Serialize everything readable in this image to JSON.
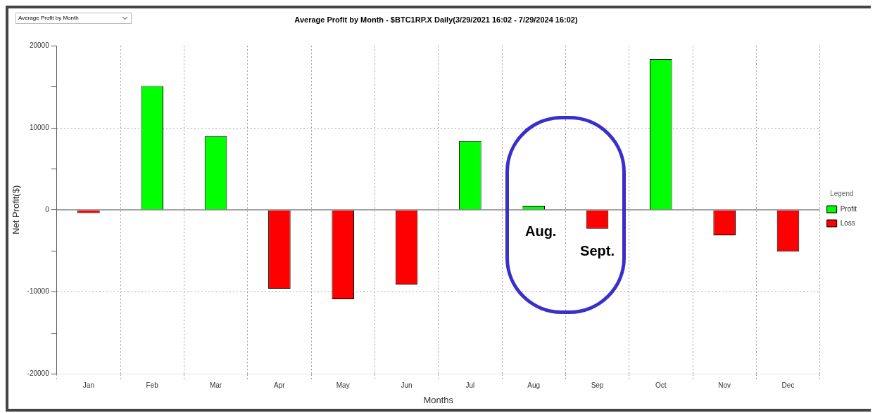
{
  "chart_data": {
    "type": "bar",
    "title": "Average Profit by Month - $BTC1RP.X Daily(3/29/2021 16:02 - 7/29/2024 16:02)",
    "xlabel": "Months",
    "ylabel": "Net Profit($)",
    "legend_title": "Legend",
    "categories": [
      "Jan",
      "Feb",
      "Mar",
      "Apr",
      "May",
      "Jun",
      "Jul",
      "Aug",
      "Sep",
      "Oct",
      "Nov",
      "Dec"
    ],
    "series": [
      {
        "name": "Profit",
        "color": "#00ff00",
        "values": [
          null,
          15100,
          9000,
          null,
          null,
          null,
          8400,
          500,
          null,
          18400,
          null,
          null
        ]
      },
      {
        "name": "Loss",
        "color": "#ff0000",
        "values": [
          -400,
          null,
          null,
          -9600,
          -10900,
          -9100,
          null,
          null,
          -2300,
          null,
          -3100,
          -5100
        ]
      }
    ],
    "ylim": [
      -20000,
      20000
    ],
    "yticks": [
      -20000,
      {
        "value": -15000,
        "label": null
      },
      -10000,
      {
        "value": -5000,
        "label": null
      },
      0,
      {
        "value": 5000,
        "label": null
      },
      10000,
      {
        "value": 15000,
        "label": null
      },
      20000
    ],
    "grid": true,
    "legend": "right",
    "ref_lines": [
      {
        "axis": "y",
        "value": 0,
        "color": "#888888"
      }
    ],
    "annotations": [
      "Average Profit by Month",
      "Aug.",
      "Sept."
    ]
  }
}
